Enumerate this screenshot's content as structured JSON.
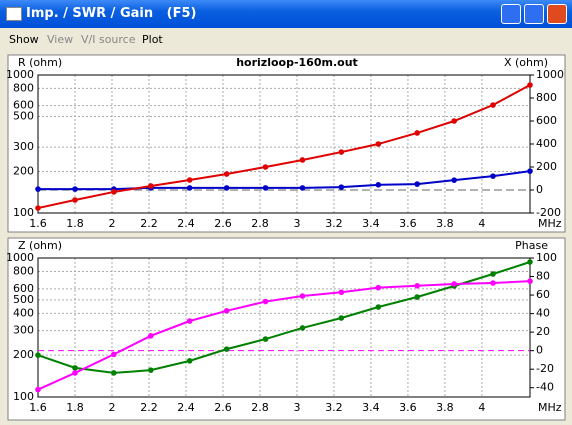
{
  "window": {
    "title": "Imp. / SWR / Gain   (F5)",
    "menu": [
      "Show",
      "View",
      "V/I source",
      "Plot"
    ]
  },
  "chart_data": [
    {
      "type": "line",
      "title": "horizloop-160m.out",
      "y_label": "R (ohm)",
      "y2_label": "X (ohm)",
      "x_label": "MHz",
      "x": [
        1.6,
        1.8,
        2.01,
        2.21,
        2.42,
        2.62,
        2.83,
        3.03,
        3.24,
        3.44,
        3.65,
        3.85,
        4.06,
        4.26
      ],
      "xlim": [
        1.6,
        4.26
      ],
      "xticks": [
        1.6,
        1.8,
        2,
        2.2,
        2.4,
        2.6,
        2.8,
        3,
        3.2,
        3.4,
        3.6,
        3.8,
        4
      ],
      "ylim": [
        100,
        1000
      ],
      "ylog": true,
      "yticks": [
        100,
        200,
        300,
        500,
        600,
        800,
        1000
      ],
      "y2lim": [
        -200,
        1000
      ],
      "y2ticks": [
        -200,
        0,
        200,
        400,
        600,
        800,
        1000
      ],
      "grid": true,
      "series": [
        {
          "name": "R",
          "color": "#0000c8",
          "values": [
            149,
            149,
            149,
            152,
            152,
            152,
            152,
            152,
            154,
            160,
            162,
            173,
            185,
            201
          ]
        },
        {
          "name": "X",
          "color": "#e00000",
          "axis": "y2",
          "values": [
            -157,
            -87,
            -17,
            35,
            87,
            139,
            200,
            261,
            330,
            400,
            496,
            600,
            739,
            913
          ]
        }
      ]
    },
    {
      "type": "line",
      "y_label": "Z (ohm)",
      "y2_label": "Phase",
      "x_label": "MHz",
      "x": [
        1.6,
        1.8,
        2.01,
        2.21,
        2.42,
        2.62,
        2.83,
        3.03,
        3.24,
        3.44,
        3.65,
        3.85,
        4.06,
        4.26
      ],
      "xlim": [
        1.6,
        4.26
      ],
      "xticks": [
        1.6,
        1.8,
        2,
        2.2,
        2.4,
        2.6,
        2.8,
        3,
        3.2,
        3.4,
        3.6,
        3.8,
        4
      ],
      "ylim": [
        100,
        1000
      ],
      "ylog": true,
      "yticks": [
        100,
        200,
        300,
        400,
        500,
        600,
        800,
        1000
      ],
      "y2lim": [
        -50,
        100
      ],
      "y2ticks": [
        -40,
        -20,
        0,
        20,
        40,
        60,
        80,
        100
      ],
      "grid": true,
      "series": [
        {
          "name": "Z",
          "color": "#008000",
          "values": [
            200,
            162,
            149,
            156,
            182,
            221,
            261,
            314,
            370,
            444,
            524,
            629,
            767,
            936
          ]
        },
        {
          "name": "Phase",
          "color": "#ff00ff",
          "axis": "y2",
          "values": [
            -42,
            -24,
            -4,
            16,
            32,
            43,
            53,
            59,
            63,
            68,
            70,
            72,
            73,
            75
          ]
        }
      ]
    }
  ]
}
